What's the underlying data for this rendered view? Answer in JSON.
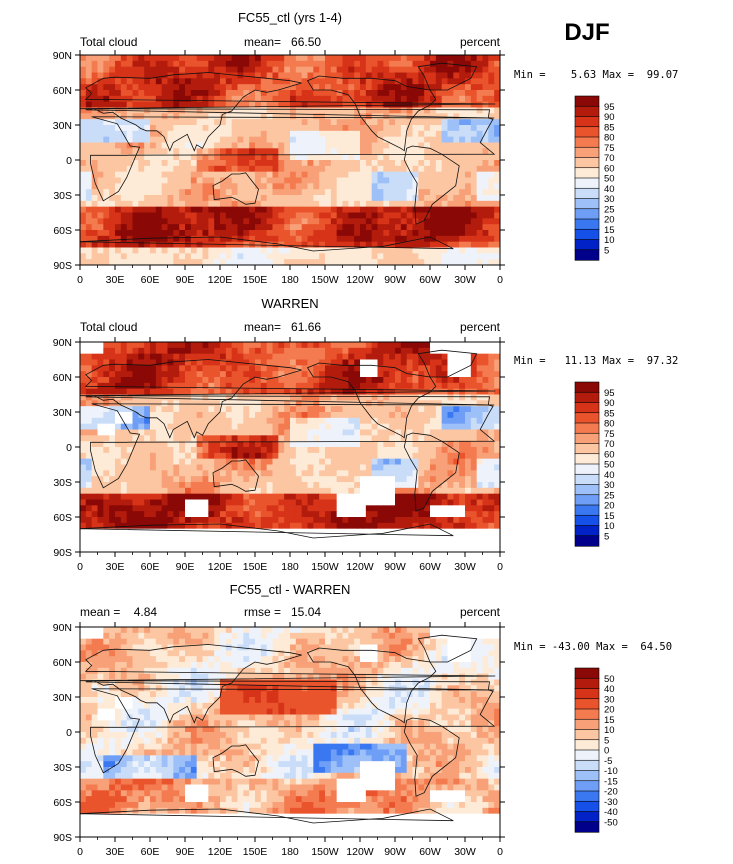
{
  "season_label": "DJF",
  "colors": {
    "levels_main": [
      "#00008a",
      "#0022c6",
      "#1550e8",
      "#3a78f2",
      "#6e9ef5",
      "#9cc0f7",
      "#c9dcf8",
      "#eef3fb",
      "#fdebd8",
      "#fbc6a1",
      "#f8a077",
      "#f47b50",
      "#ea542d",
      "#d63318",
      "#b31c0c",
      "#8a0806"
    ],
    "levels_diff": [
      "#00008a",
      "#0022c6",
      "#1550e8",
      "#3a78f2",
      "#6e9ef5",
      "#9cc0f7",
      "#c9dcf8",
      "#eef3fb",
      "#fdebd8",
      "#fbc6a1",
      "#f8a077",
      "#f47b50",
      "#ea542d",
      "#d63318",
      "#b31c0c",
      "#8a0806"
    ]
  },
  "chart_data": [
    {
      "type": "heatmap",
      "title": "FC55_ctl (yrs 1-4)",
      "left_label": "Total cloud",
      "center_label": "mean=   66.50",
      "right_label": "percent",
      "minmax_label": "Min =    5.63 Max =  99.07",
      "min": 5.63,
      "max": 99.07,
      "mean": 66.5,
      "x_ticks": [
        "0",
        "30E",
        "60E",
        "90E",
        "120E",
        "150E",
        "180",
        "150W",
        "120W",
        "90W",
        "60W",
        "30W",
        "0"
      ],
      "y_ticks": [
        "90N",
        "60N",
        "30N",
        "0",
        "30S",
        "60S",
        "90S"
      ],
      "colorbar_labels": [
        "95",
        "90",
        "85",
        "80",
        "75",
        "70",
        "60",
        "50",
        "40",
        "30",
        "25",
        "20",
        "15",
        "10",
        "5"
      ]
    },
    {
      "type": "heatmap",
      "title": "WARREN",
      "left_label": "Total cloud",
      "center_label": "mean=   61.66",
      "right_label": "percent",
      "minmax_label": "Min =   11.13 Max =  97.32",
      "min": 11.13,
      "max": 97.32,
      "mean": 61.66,
      "x_ticks": [
        "0",
        "30E",
        "60E",
        "90E",
        "120E",
        "150E",
        "180",
        "150W",
        "120W",
        "90W",
        "60W",
        "30W",
        "0"
      ],
      "y_ticks": [
        "90N",
        "60N",
        "30N",
        "0",
        "30S",
        "60S",
        "90S"
      ],
      "colorbar_labels": [
        "95",
        "90",
        "85",
        "80",
        "75",
        "70",
        "60",
        "50",
        "40",
        "30",
        "25",
        "20",
        "15",
        "10",
        "5"
      ]
    },
    {
      "type": "heatmap",
      "title": "FC55_ctl - WARREN",
      "left_label": "mean =    4.84",
      "center_label": "rmse =   15.04",
      "right_label": "percent",
      "minmax_label": "Min = -43.00 Max =  64.50",
      "min": -43.0,
      "max": 64.5,
      "mean": 4.84,
      "rmse": 15.04,
      "x_ticks": [
        "0",
        "30E",
        "60E",
        "90E",
        "120E",
        "150E",
        "180",
        "150W",
        "120W",
        "90W",
        "60W",
        "30W",
        "0"
      ],
      "y_ticks": [
        "90N",
        "60N",
        "30N",
        "0",
        "30S",
        "60S",
        "90S"
      ],
      "colorbar_labels": [
        "50",
        "40",
        "30",
        "20",
        "15",
        "10",
        "5",
        "0",
        "-5",
        "-10",
        "-15",
        "-20",
        "-30",
        "-40",
        "-50"
      ]
    }
  ]
}
